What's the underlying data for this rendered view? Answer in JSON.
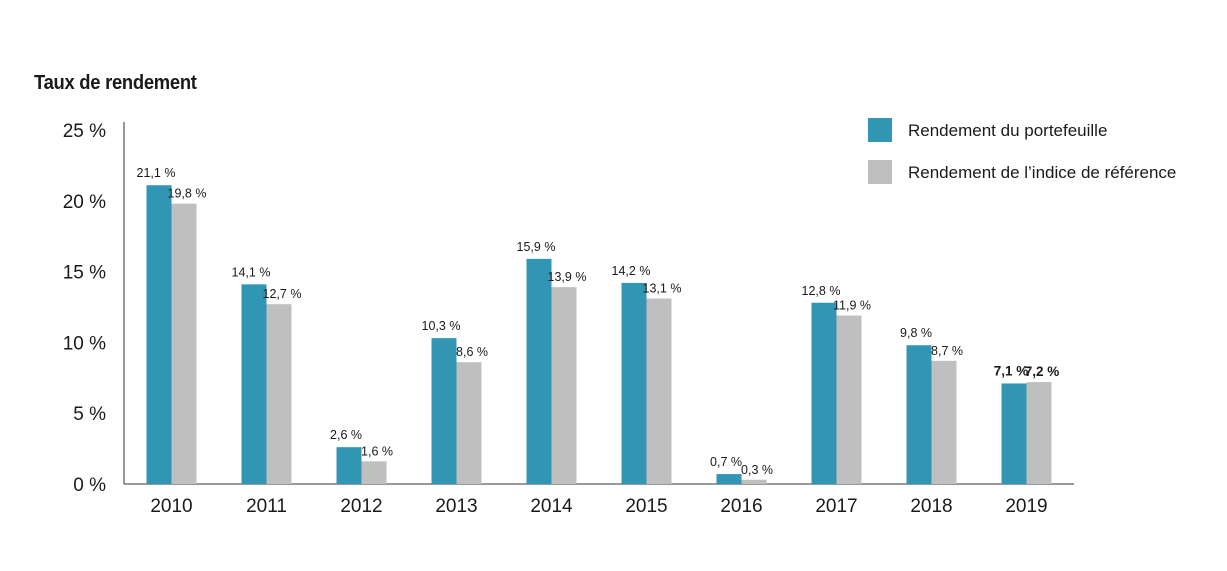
{
  "chart_data": {
    "type": "bar",
    "title": "Taux de rendement",
    "categories": [
      "2010",
      "2011",
      "2012",
      "2013",
      "2014",
      "2015",
      "2016",
      "2017",
      "2018",
      "2019"
    ],
    "series": [
      {
        "name": "Rendement du portefeuille",
        "color": "#3196b4",
        "values": [
          21.1,
          14.1,
          2.6,
          10.3,
          15.9,
          14.2,
          0.7,
          12.8,
          9.8,
          7.1
        ],
        "labels": [
          "21,1 %",
          "14,1 %",
          "2,6 %",
          "10,3 %",
          "15,9 %",
          "14,2 %",
          "0,7 %",
          "12,8 %",
          "9,8 %",
          "7,1 %"
        ]
      },
      {
        "name": "Rendement de l’indice de référence",
        "color": "#bfbfbf",
        "values": [
          19.8,
          12.7,
          1.6,
          8.6,
          13.9,
          13.1,
          0.3,
          11.9,
          8.7,
          7.2
        ],
        "labels": [
          "19,8 %",
          "12,7 %",
          "1,6 %",
          "8,6 %",
          "13,9 %",
          "13,1 %",
          "0,3 %",
          "11,9 %",
          "8,7 %",
          "7,2 %"
        ]
      }
    ],
    "bold_labels_for": [
      "2019"
    ],
    "ylim": [
      0,
      25
    ],
    "yticks": [
      0,
      5,
      10,
      15,
      20,
      25
    ],
    "ytick_labels": [
      "0 %",
      "5 %",
      "10 %",
      "15 %",
      "20 %",
      "25 %"
    ],
    "grid": false,
    "legend_position": "top-right"
  }
}
